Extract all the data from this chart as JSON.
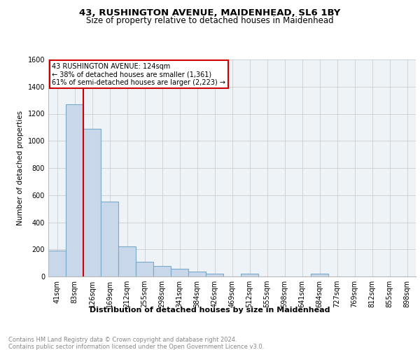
{
  "title1": "43, RUSHINGTON AVENUE, MAIDENHEAD, SL6 1BY",
  "title2": "Size of property relative to detached houses in Maidenhead",
  "xlabel": "Distribution of detached houses by size in Maidenhead",
  "ylabel": "Number of detached properties",
  "footnote": "Contains HM Land Registry data © Crown copyright and database right 2024.\nContains public sector information licensed under the Open Government Licence v3.0.",
  "categories": [
    "41sqm",
    "83sqm",
    "126sqm",
    "169sqm",
    "212sqm",
    "255sqm",
    "298sqm",
    "341sqm",
    "384sqm",
    "426sqm",
    "469sqm",
    "512sqm",
    "555sqm",
    "598sqm",
    "641sqm",
    "684sqm",
    "727sqm",
    "769sqm",
    "812sqm",
    "855sqm",
    "898sqm"
  ],
  "values": [
    190,
    1270,
    1090,
    550,
    220,
    110,
    75,
    55,
    35,
    20,
    0,
    20,
    0,
    0,
    0,
    20,
    0,
    0,
    0,
    0,
    0
  ],
  "bar_color": "#c8d8ea",
  "bar_edge_color": "#7aaac8",
  "property_line_x": 1.5,
  "property_line_color": "#cc0000",
  "annotation_box_text": "43 RUSHINGTON AVENUE: 124sqm\n← 38% of detached houses are smaller (1,361)\n61% of semi-detached houses are larger (2,223) →",
  "annotation_box_color": "#cc0000",
  "ylim": [
    0,
    1600
  ],
  "yticks": [
    0,
    200,
    400,
    600,
    800,
    1000,
    1200,
    1400,
    1600
  ],
  "grid_color": "#cccccc",
  "background_color": "#eef3f8",
  "title1_fontsize": 9.5,
  "title2_fontsize": 8.5,
  "xlabel_fontsize": 8.0,
  "ylabel_fontsize": 7.5,
  "tick_fontsize": 7.0,
  "footnote_fontsize": 6.0,
  "footnote_color": "#888888"
}
